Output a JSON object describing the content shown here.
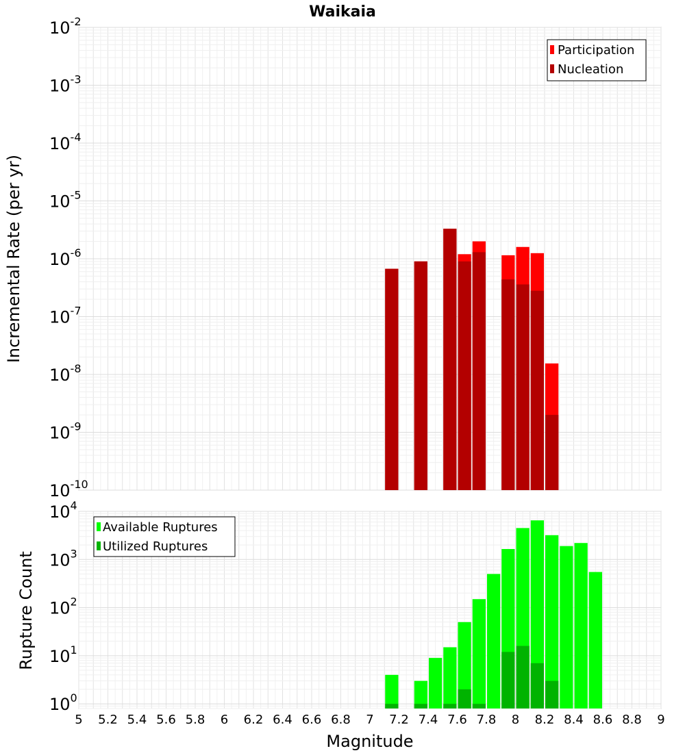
{
  "chart_data": [
    {
      "type": "bar",
      "title": "Waikaia",
      "xlabel": "",
      "ylabel": "Incremental Rate (per yr)",
      "yscale": "log",
      "ylim": [
        1e-10,
        0.01
      ],
      "xlim": [
        5,
        9
      ],
      "grid": true,
      "legend_position": "top-right",
      "y_ticks": [
        {
          "base": "10",
          "exp": "-10"
        },
        {
          "base": "10",
          "exp": "-9"
        },
        {
          "base": "10",
          "exp": "-8"
        },
        {
          "base": "10",
          "exp": "-7"
        },
        {
          "base": "10",
          "exp": "-6"
        },
        {
          "base": "10",
          "exp": "-5"
        },
        {
          "base": "10",
          "exp": "-4"
        },
        {
          "base": "10",
          "exp": "-3"
        },
        {
          "base": "10",
          "exp": "-2"
        }
      ],
      "series": [
        {
          "name": "Participation",
          "color": "#ff0000",
          "x": [
            7.15,
            7.35,
            7.55,
            7.65,
            7.75,
            7.95,
            8.05,
            8.15,
            8.25
          ],
          "values": [
            6.7e-07,
            9e-07,
            3.3e-06,
            1.2e-06,
            2e-06,
            1.15e-06,
            1.6e-06,
            1.25e-06,
            1.55e-08
          ]
        },
        {
          "name": "Nucleation",
          "color": "#b30000",
          "x": [
            7.15,
            7.35,
            7.55,
            7.65,
            7.75,
            7.95,
            8.05,
            8.15,
            8.25
          ],
          "values": [
            6.7e-07,
            9e-07,
            3.3e-06,
            9e-07,
            1.3e-06,
            4.4e-07,
            3.6e-07,
            2.8e-07,
            2e-09
          ]
        }
      ]
    },
    {
      "type": "bar",
      "title": "",
      "xlabel": "Magnitude",
      "ylabel": "Rupture Count",
      "yscale": "log",
      "ylim": [
        0.8,
        10000
      ],
      "xlim": [
        5,
        9
      ],
      "grid": true,
      "legend_position": "top-left",
      "x_tick_labels": [
        "5",
        "5.2",
        "5.4",
        "5.6",
        "5.8",
        "6",
        "6.2",
        "6.4",
        "6.6",
        "6.8",
        "7",
        "7.2",
        "7.4",
        "7.6",
        "7.8",
        "8",
        "8.2",
        "8.4",
        "8.6",
        "8.8",
        "9"
      ],
      "y_ticks": [
        {
          "base": "10",
          "exp": "0"
        },
        {
          "base": "10",
          "exp": "1"
        },
        {
          "base": "10",
          "exp": "2"
        },
        {
          "base": "10",
          "exp": "3"
        },
        {
          "base": "10",
          "exp": "4"
        }
      ],
      "series": [
        {
          "name": "Available Ruptures",
          "color": "#00ff00",
          "x": [
            7.15,
            7.35,
            7.45,
            7.55,
            7.65,
            7.75,
            7.85,
            7.95,
            8.05,
            8.15,
            8.25,
            8.35,
            8.45,
            8.55
          ],
          "values": [
            4,
            3,
            9,
            15,
            50,
            150,
            500,
            1650,
            4500,
            6500,
            3200,
            1900,
            2200,
            550
          ]
        },
        {
          "name": "Utilized Ruptures",
          "color": "#00b300",
          "x": [
            7.15,
            7.35,
            7.55,
            7.65,
            7.75,
            7.95,
            8.05,
            8.15,
            8.25
          ],
          "values": [
            1,
            1,
            1,
            2,
            1,
            12,
            16,
            7,
            3
          ]
        }
      ]
    }
  ]
}
